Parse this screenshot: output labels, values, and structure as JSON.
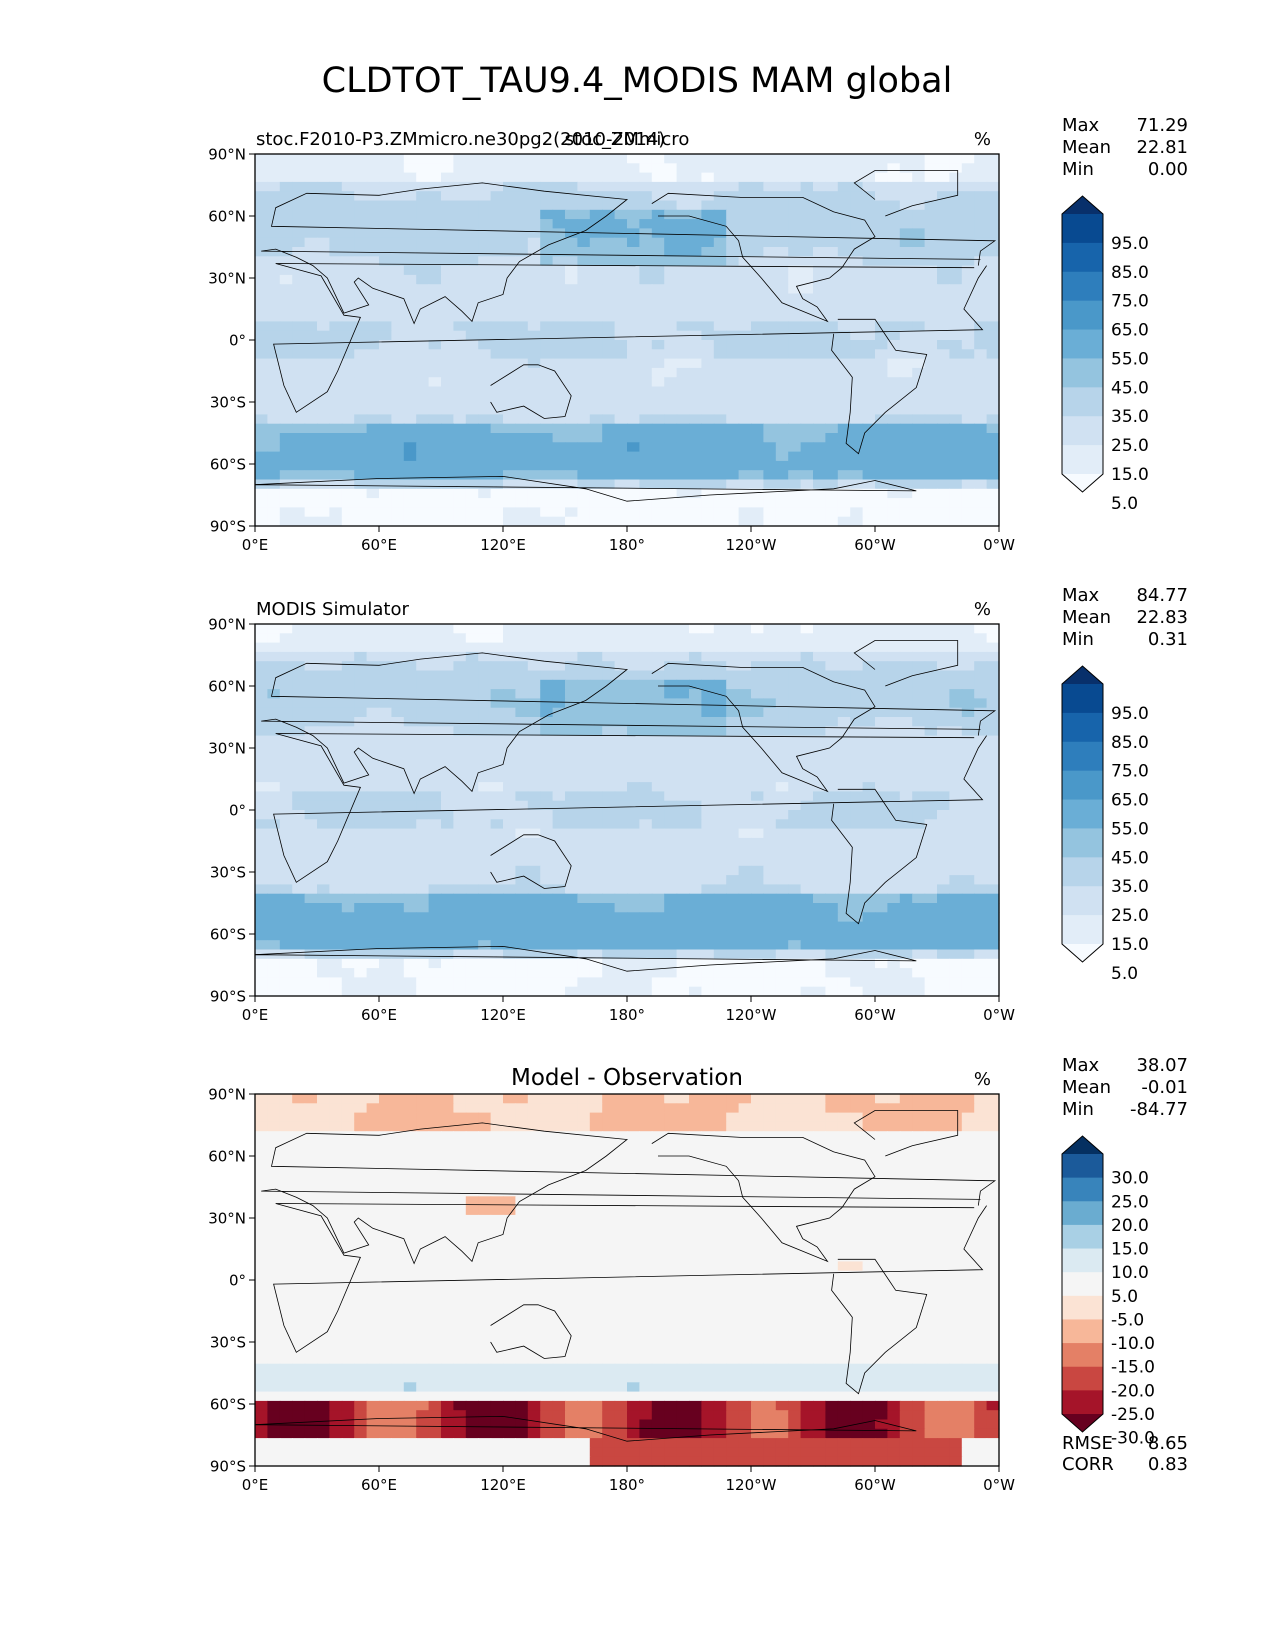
{
  "figure": {
    "title": "CLDTOT_TAU9.4_MODIS MAM global"
  },
  "axes": {
    "lat_ticks": [
      "90°N",
      "60°N",
      "30°N",
      "0°",
      "30°S",
      "60°S",
      "90°S"
    ],
    "lon_ticks": [
      "0°E",
      "60°E",
      "120°E",
      "180°",
      "120°W",
      "60°W",
      "0°W"
    ]
  },
  "colors": {
    "blues": [
      "#f7fbff",
      "#e2edf8",
      "#d0e1f2",
      "#b7d4ea",
      "#94c4df",
      "#6aaed6",
      "#4a98c9",
      "#2e7ebc",
      "#1764ab",
      "#084a91",
      "#08306b"
    ],
    "diverging": [
      "#67001f",
      "#a51429",
      "#c94741",
      "#e48066",
      "#f7b799",
      "#fbe3d4",
      "#f5f5f5",
      "#dbeaf2",
      "#a9d0e5",
      "#6aacd0",
      "#3884bb",
      "#1b5a9a",
      "#053061"
    ],
    "coastline": "#000000"
  },
  "chart_data": [
    {
      "type": "heatmap",
      "title_left": "stoc.F2010-P3.ZMmicro.ne30pg2(2010-2014)",
      "title_center": "stoc_ZMmicro",
      "units": "%",
      "stats": [
        {
          "label": "Max",
          "value": "71.29"
        },
        {
          "label": "Mean",
          "value": "22.81"
        },
        {
          "label": "Min",
          "value": "0.00"
        }
      ],
      "colorbar_ticks": [
        "95.0",
        "85.0",
        "75.0",
        "65.0",
        "55.0",
        "45.0",
        "35.0",
        "25.0",
        "15.0",
        "5.0"
      ],
      "colormap": "blues",
      "xlim": [
        0,
        360
      ],
      "ylim": [
        -90,
        90
      ]
    },
    {
      "type": "heatmap",
      "title_left": "MODIS Simulator",
      "title_center": "",
      "units": "%",
      "stats": [
        {
          "label": "Max",
          "value": "84.77"
        },
        {
          "label": "Mean",
          "value": "22.83"
        },
        {
          "label": "Min",
          "value": "0.31"
        }
      ],
      "colorbar_ticks": [
        "95.0",
        "85.0",
        "75.0",
        "65.0",
        "55.0",
        "45.0",
        "35.0",
        "25.0",
        "15.0",
        "5.0"
      ],
      "colormap": "blues",
      "xlim": [
        0,
        360
      ],
      "ylim": [
        -90,
        90
      ]
    },
    {
      "type": "heatmap",
      "title_left": "",
      "title_center": "Model - Observation",
      "units": "%",
      "stats": [
        {
          "label": "Max",
          "value": "38.07"
        },
        {
          "label": "Mean",
          "value": "-0.01"
        },
        {
          "label": "Min",
          "value": "-84.77"
        }
      ],
      "colorbar_ticks": [
        "30.0",
        "25.0",
        "20.0",
        "15.0",
        "10.0",
        "5.0",
        "-5.0",
        "-10.0",
        "-15.0",
        "-20.0",
        "-25.0",
        "-30.0"
      ],
      "colormap": "diverging",
      "extra_stats": [
        {
          "label": "RMSE",
          "value": "8.65"
        },
        {
          "label": "CORR",
          "value": "0.83"
        }
      ],
      "xlim": [
        0,
        360
      ],
      "ylim": [
        -90,
        90
      ]
    }
  ]
}
